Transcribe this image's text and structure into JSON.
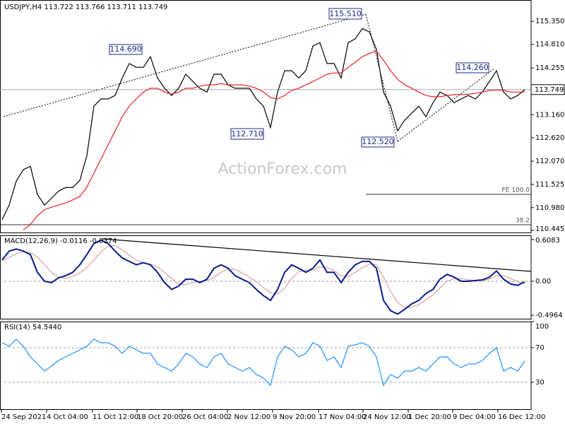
{
  "chart_data": [
    {
      "type": "line",
      "title": "USDJPY,H4  113.722 113.766 113.711 113.749",
      "x": [
        0,
        1,
        2,
        3,
        4,
        5,
        6,
        7,
        8,
        9,
        10,
        11,
        12,
        13,
        14,
        15,
        16,
        17,
        18,
        19,
        20,
        21,
        22,
        23,
        24,
        25,
        26,
        27,
        28,
        29,
        30,
        31,
        32,
        33,
        34,
        35,
        36,
        37,
        38,
        39,
        40,
        41,
        42,
        43,
        44,
        45,
        46,
        47,
        48,
        49,
        50,
        51,
        52,
        53,
        54,
        55,
        56,
        57,
        58,
        59,
        60,
        61,
        62,
        63,
        64,
        65,
        66,
        67,
        68,
        69,
        70,
        71,
        72,
        73,
        74
      ],
      "series": [
        {
          "color": "#000000",
          "values": [
            110.7,
            111.04,
            111.6,
            111.87,
            111.95,
            111.29,
            111.04,
            111.2,
            111.37,
            111.45,
            111.45,
            111.62,
            112.2,
            113.36,
            113.53,
            113.53,
            113.61,
            114.02,
            114.36,
            114.27,
            114.27,
            114.52,
            114.02,
            113.78,
            113.61,
            113.78,
            114.11,
            113.94,
            113.78,
            113.69,
            114.11,
            114.11,
            113.86,
            113.78,
            113.78,
            113.78,
            113.53,
            113.36,
            112.86,
            113.69,
            114.19,
            114.19,
            114.02,
            114.19,
            114.77,
            114.85,
            114.36,
            114.36,
            114.02,
            114.85,
            114.94,
            115.18,
            115.1,
            114.69,
            113.69,
            113.36,
            112.78,
            113.03,
            113.2,
            113.36,
            113.11,
            113.44,
            113.69,
            113.61,
            113.44,
            113.53,
            113.61,
            113.53,
            113.69,
            113.94,
            114.19,
            113.69,
            113.53,
            113.61,
            113.749
          ]
        },
        {
          "color": "#e8202a",
          "values": [
            null,
            null,
            null,
            110.46,
            110.58,
            110.79,
            110.93,
            110.99,
            111.04,
            111.09,
            111.16,
            111.24,
            111.46,
            111.79,
            112.12,
            112.45,
            112.78,
            113.11,
            113.36,
            113.53,
            113.69,
            113.78,
            113.78,
            113.69,
            113.64,
            113.69,
            113.78,
            113.78,
            113.83,
            113.86,
            113.86,
            113.89,
            113.86,
            113.86,
            113.86,
            113.83,
            113.78,
            113.69,
            113.56,
            113.53,
            113.61,
            113.73,
            113.78,
            113.86,
            113.94,
            114.02,
            114.11,
            114.14,
            114.14,
            114.27,
            114.39,
            114.52,
            114.6,
            114.65,
            114.44,
            114.19,
            113.99,
            113.86,
            113.78,
            113.69,
            113.61,
            113.58,
            113.58,
            113.61,
            113.63,
            113.63,
            113.64,
            113.66,
            113.69,
            113.73,
            113.74,
            113.73,
            113.69,
            113.69,
            113.69
          ]
        }
      ],
      "xlim": [
        -0.3,
        74.9
      ],
      "ylim": [
        110.38,
        115.85
      ],
      "yticks": [
        {
          "value": 115.35,
          "label": "115.350"
        },
        {
          "value": 114.81,
          "label": "114.810"
        },
        114.255,
        {
          "value": 113.16,
          "label": "113.160"
        },
        {
          "value": 112.62,
          "label": "112.620"
        },
        {
          "value": 112.07,
          "label": "112.070"
        },
        111.525,
        {
          "value": 110.98,
          "label": "110.980"
        },
        110.445
      ],
      "last_price": 113.749,
      "annotations": [
        "114.690",
        "115.510",
        "112.710",
        "112.520",
        "114.260",
        "FE 100.0",
        "38.2"
      ],
      "watermark": "ActionForex.com"
    },
    {
      "type": "line",
      "title": "MACD(12,26,9) -0.0116 -0.0374",
      "x": [
        0,
        1,
        2,
        3,
        4,
        5,
        6,
        7,
        8,
        9,
        10,
        11,
        12,
        13,
        14,
        15,
        16,
        17,
        18,
        19,
        20,
        21,
        22,
        23,
        24,
        25,
        26,
        27,
        28,
        29,
        30,
        31,
        32,
        33,
        34,
        35,
        36,
        37,
        38,
        39,
        40,
        41,
        42,
        43,
        44,
        45,
        46,
        47,
        48,
        49,
        50,
        51,
        52,
        53,
        54,
        55,
        56,
        57,
        58,
        59,
        60,
        61,
        62,
        63,
        64,
        65,
        66,
        67,
        68,
        69,
        70,
        71,
        72,
        73,
        74
      ],
      "series": [
        {
          "color": "#d8a0a0",
          "values": [
            0.3,
            0.35,
            0.4,
            0.43,
            0.42,
            0.35,
            0.24,
            0.13,
            0.06,
            0.04,
            0.07,
            0.12,
            0.2,
            0.31,
            0.43,
            0.51,
            0.52,
            0.46,
            0.38,
            0.31,
            0.27,
            0.25,
            0.21,
            0.13,
            0.04,
            -0.04,
            -0.05,
            -0.02,
            0,
            0.01,
            0.06,
            0.13,
            0.18,
            0.17,
            0.12,
            0.06,
            -0.01,
            -0.09,
            -0.17,
            -0.19,
            -0.1,
            0.04,
            0.14,
            0.16,
            0.16,
            0.21,
            0.2,
            0.16,
            0.08,
            0.07,
            0.13,
            0.2,
            0.25,
            0.24,
            0.06,
            -0.15,
            -0.31,
            -0.39,
            -0.38,
            -0.34,
            -0.27,
            -0.2,
            -0.1,
            0,
            0.04,
            0.04,
            0.02,
            0.01,
            0.01,
            0.03,
            0.08,
            0.08,
            0.04,
            -0.01,
            -0.03
          ]
        },
        {
          "color": "#0a1a8c",
          "values": [
            0.31,
            0.44,
            0.47,
            0.44,
            0.39,
            0.13,
            0,
            -0.02,
            0.05,
            0.08,
            0.13,
            0.24,
            0.39,
            0.55,
            0.6,
            0.55,
            0.44,
            0.34,
            0.29,
            0.24,
            0.27,
            0.24,
            0.13,
            -0.02,
            -0.12,
            -0.07,
            0.03,
            0.03,
            -0.02,
            0.03,
            0.19,
            0.24,
            0.19,
            0.08,
            0.03,
            -0.02,
            -0.12,
            -0.21,
            -0.28,
            -0.12,
            0.13,
            0.24,
            0.19,
            0.13,
            0.19,
            0.31,
            0.13,
            0.13,
            -0.02,
            0.13,
            0.24,
            0.29,
            0.29,
            0.19,
            -0.28,
            -0.43,
            -0.48,
            -0.41,
            -0.33,
            -0.28,
            -0.18,
            -0.12,
            0.03,
            0.1,
            0.06,
            0,
            0,
            0.01,
            0.02,
            0.06,
            0.15,
            0.03,
            -0.04,
            -0.06,
            -0.01
          ]
        }
      ],
      "xlim": [
        -0.3,
        74.9
      ],
      "ylim": [
        -0.557,
        0.67
      ],
      "yticks": [
        0.6083,
        {
          "value": 0,
          "label": "0.00"
        },
        -0.4964
      ],
      "levels": [
        0
      ]
    },
    {
      "type": "line",
      "title": "RSI(14) 54.5440",
      "x": [
        0,
        1,
        2,
        3,
        4,
        5,
        6,
        7,
        8,
        9,
        10,
        11,
        12,
        13,
        14,
        15,
        16,
        17,
        18,
        19,
        20,
        21,
        22,
        23,
        24,
        25,
        26,
        27,
        28,
        29,
        30,
        31,
        32,
        33,
        34,
        35,
        36,
        37,
        38,
        39,
        40,
        41,
        42,
        43,
        44,
        45,
        46,
        47,
        48,
        49,
        50,
        51,
        52,
        53,
        54,
        55,
        56,
        57,
        58,
        59,
        60,
        61,
        62,
        63,
        64,
        65,
        66,
        67,
        68,
        69,
        70,
        71,
        72,
        73,
        74
      ],
      "series": [
        {
          "color": "#1e90ff",
          "values": [
            75.7,
            71.6,
            79.8,
            71.6,
            59.4,
            51.2,
            43,
            48.8,
            55.3,
            59.4,
            63.5,
            67.6,
            71.6,
            79.8,
            75.7,
            75.7,
            71.6,
            63.5,
            71.6,
            67.6,
            63.5,
            63.5,
            51.2,
            47.1,
            43,
            51.2,
            63.5,
            59.4,
            51.2,
            47.1,
            59.4,
            63.5,
            51.2,
            47.1,
            43,
            47.1,
            39,
            34.9,
            26.7,
            59.4,
            71.6,
            67.6,
            59.4,
            63.5,
            75.7,
            71.6,
            55.3,
            59.4,
            47.1,
            71.6,
            73.3,
            75.7,
            71.6,
            59.4,
            26.7,
            39,
            34.9,
            43,
            43,
            47.1,
            43,
            51.2,
            59.4,
            59.4,
            51.2,
            47.1,
            51.2,
            51.2,
            55.3,
            63.5,
            70,
            43,
            47.1,
            43,
            54.544
          ]
        }
      ],
      "xlim": [
        -0.3,
        74.9
      ],
      "ylim": [
        -1.8,
        100.2
      ],
      "yticks": [
        100,
        70,
        30
      ],
      "levels": [
        70,
        30
      ],
      "xticks": [
        {
          "value": -0.1,
          "label": "24 Sep 2021"
        },
        {
          "value": 6.3,
          "label": "4 Oct 04:00"
        },
        {
          "value": 12.8,
          "label": "11 Oct 12:00"
        },
        {
          "value": 19.1,
          "label": "18 Oct 20:00"
        },
        {
          "value": 25.5,
          "label": "26 Oct 04:00"
        },
        {
          "value": 31.9,
          "label": "2 Nov 12:00"
        },
        {
          "value": 38.3,
          "label": "9 Nov 20:00"
        },
        {
          "value": 44.8,
          "label": "17 Nov 04:00"
        },
        {
          "value": 51.1,
          "label": "24 Nov 12:00"
        },
        {
          "value": 57.5,
          "label": "1 Dec 20:00"
        },
        {
          "value": 63.8,
          "label": "9 Dec 04:00"
        },
        {
          "value": 70.2,
          "label": "16 Dec 12:00"
        }
      ]
    }
  ]
}
